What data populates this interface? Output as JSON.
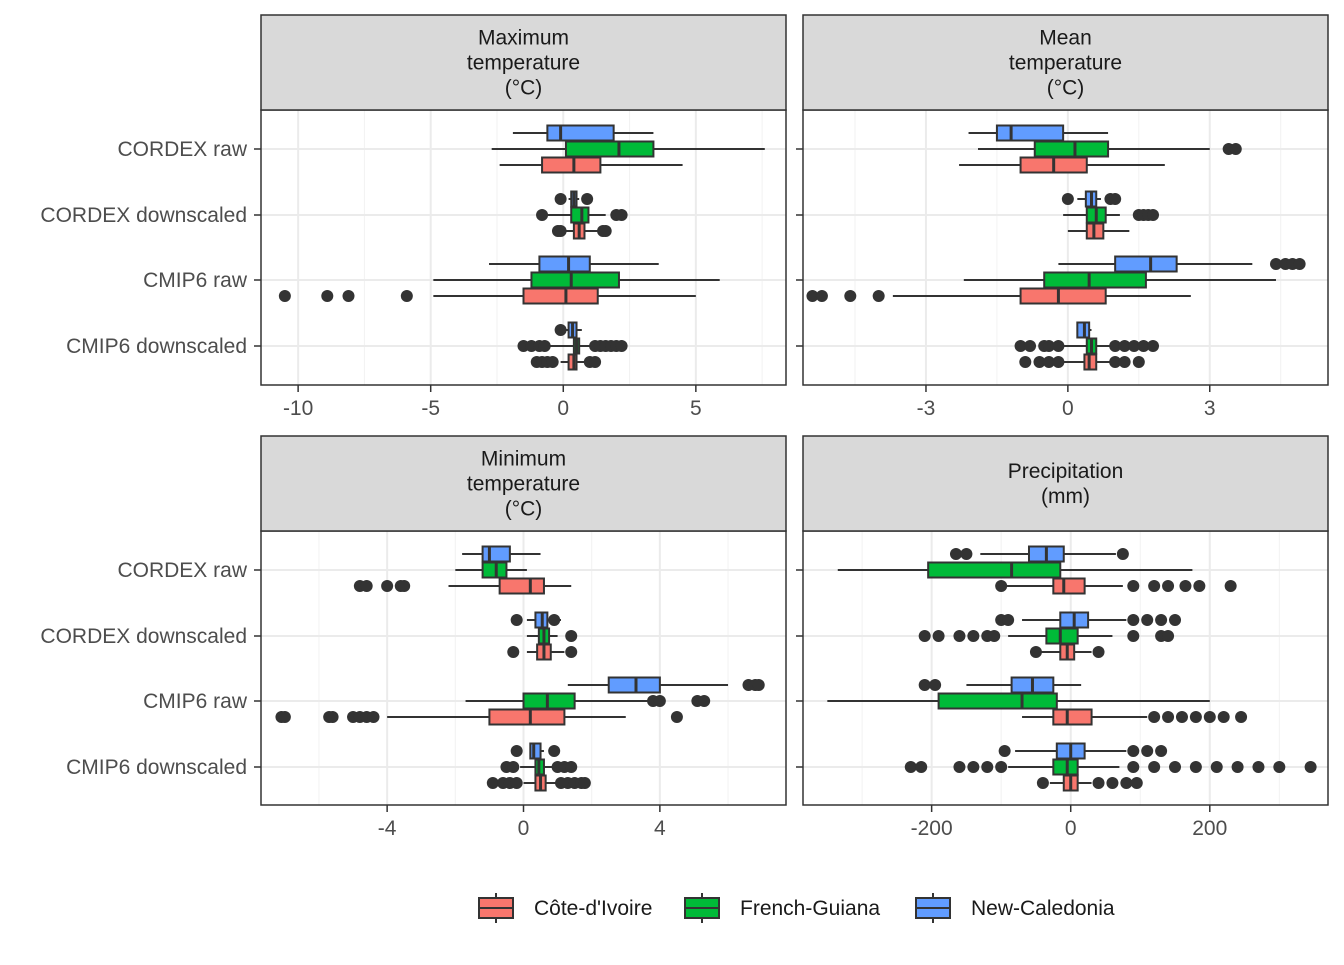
{
  "chart_data": {
    "type": "boxplot",
    "layout": "2x2 facet grid, horizontal boxplots, free x scales",
    "categories": [
      "CORDEX raw",
      "CORDEX downscaled",
      "CMIP6 raw",
      "CMIP6 downscaled"
    ],
    "legend": {
      "position": "bottom",
      "entries": [
        {
          "name": "Côte-d'Ivoire",
          "color": "#F8766D"
        },
        {
          "name": "French-Guiana",
          "color": "#00BA38"
        },
        {
          "name": "New-Caledonia",
          "color": "#619CFF"
        }
      ]
    },
    "panels": [
      {
        "title_lines": [
          "Maximum",
          "temperature",
          "(°C)"
        ],
        "xlim": [
          -11.4,
          8.4
        ],
        "xticks": [
          -10,
          -5,
          0,
          5
        ],
        "xtick_labels": [
          "-10",
          "-5",
          "0",
          "5"
        ],
        "groups": [
          {
            "category": "CORDEX raw",
            "series": {
              "New-Caledonia": {
                "whisker_low": -1.9,
                "q1": -0.6,
                "median": -0.1,
                "q3": 1.9,
                "whisker_high": 3.4,
                "outliers": []
              },
              "French-Guiana": {
                "whisker_low": -2.7,
                "q1": 0.1,
                "median": 2.1,
                "q3": 3.4,
                "whisker_high": 7.6,
                "outliers": []
              },
              "Côte-d'Ivoire": {
                "whisker_low": -2.4,
                "q1": -0.8,
                "median": 0.4,
                "q3": 1.4,
                "whisker_high": 4.5,
                "outliers": []
              }
            }
          },
          {
            "category": "CORDEX downscaled",
            "series": {
              "New-Caledonia": {
                "whisker_low": 0.2,
                "q1": 0.3,
                "median": 0.4,
                "q3": 0.5,
                "whisker_high": 0.6,
                "outliers": [
                  -0.1,
                  0.9
                ]
              },
              "French-Guiana": {
                "whisker_low": -0.6,
                "q1": 0.3,
                "median": 0.7,
                "q3": 0.95,
                "whisker_high": 1.6,
                "outliers": [
                  -0.8,
                  2.0,
                  2.2
                ]
              },
              "Côte-d'Ivoire": {
                "whisker_low": 0.1,
                "q1": 0.4,
                "median": 0.6,
                "q3": 0.8,
                "whisker_high": 1.3,
                "outliers": [
                  -0.2,
                  -0.1,
                  1.5,
                  1.6
                ]
              }
            }
          },
          {
            "category": "CMIP6 raw",
            "series": {
              "New-Caledonia": {
                "whisker_low": -2.8,
                "q1": -0.9,
                "median": 0.2,
                "q3": 1.0,
                "whisker_high": 3.6,
                "outliers": []
              },
              "French-Guiana": {
                "whisker_low": -4.9,
                "q1": -1.2,
                "median": 0.3,
                "q3": 2.1,
                "whisker_high": 5.9,
                "outliers": []
              },
              "Côte-d'Ivoire": {
                "whisker_low": -4.9,
                "q1": -1.5,
                "median": 0.1,
                "q3": 1.3,
                "whisker_high": 5.0,
                "outliers": [
                  -10.5,
                  -8.9,
                  -8.1,
                  -5.9
                ]
              }
            }
          },
          {
            "category": "CMIP6 downscaled",
            "series": {
              "New-Caledonia": {
                "whisker_low": 0.1,
                "q1": 0.2,
                "median": 0.35,
                "q3": 0.5,
                "whisker_high": 0.7,
                "outliers": [
                  -0.1
                ]
              },
              "French-Guiana": {
                "whisker_low": -0.6,
                "q1": 0.4,
                "median": 0.5,
                "q3": 0.6,
                "whisker_high": 1.1,
                "outliers": [
                  -1.5,
                  -1.2,
                  -0.9,
                  -0.7,
                  1.2,
                  1.4,
                  1.6,
                  1.8,
                  2.0,
                  2.2
                ]
              },
              "Côte-d'Ivoire": {
                "whisker_low": -0.1,
                "q1": 0.2,
                "median": 0.4,
                "q3": 0.5,
                "whisker_high": 0.9,
                "outliers": [
                  -1.0,
                  -0.8,
                  -0.6,
                  -0.4,
                  1.0,
                  1.2
                ]
              }
            }
          }
        ]
      },
      {
        "title_lines": [
          "Mean",
          "temperature",
          "(°C)"
        ],
        "xlim": [
          -5.6,
          5.5
        ],
        "xticks": [
          -3,
          0,
          3
        ],
        "xtick_labels": [
          "-3",
          "0",
          "3"
        ],
        "groups": [
          {
            "category": "CORDEX raw",
            "series": {
              "New-Caledonia": {
                "whisker_low": -2.1,
                "q1": -1.5,
                "median": -1.2,
                "q3": -0.1,
                "whisker_high": 0.85,
                "outliers": []
              },
              "French-Guiana": {
                "whisker_low": -1.9,
                "q1": -0.7,
                "median": 0.15,
                "q3": 0.85,
                "whisker_high": 3.0,
                "outliers": [
                  3.4,
                  3.55
                ]
              },
              "Côte-d'Ivoire": {
                "whisker_low": -2.3,
                "q1": -1.0,
                "median": -0.3,
                "q3": 0.4,
                "whisker_high": 2.05,
                "outliers": []
              }
            }
          },
          {
            "category": "CORDEX downscaled",
            "series": {
              "New-Caledonia": {
                "whisker_low": 0.2,
                "q1": 0.38,
                "median": 0.5,
                "q3": 0.6,
                "whisker_high": 0.7,
                "outliers": [
                  0.0,
                  0.9,
                  1.0
                ]
              },
              "French-Guiana": {
                "whisker_low": -0.1,
                "q1": 0.4,
                "median": 0.6,
                "q3": 0.8,
                "whisker_high": 1.1,
                "outliers": [
                  1.5,
                  1.6,
                  1.7,
                  1.8
                ]
              },
              "Côte-d'Ivoire": {
                "whisker_low": 0.0,
                "q1": 0.4,
                "median": 0.55,
                "q3": 0.75,
                "whisker_high": 1.3,
                "outliers": []
              }
            }
          },
          {
            "category": "CMIP6 raw",
            "series": {
              "New-Caledonia": {
                "whisker_low": -0.2,
                "q1": 1.0,
                "median": 1.75,
                "q3": 2.3,
                "whisker_high": 3.9,
                "outliers": [
                  4.4,
                  4.6,
                  4.75,
                  4.9
                ]
              },
              "French-Guiana": {
                "whisker_low": -2.2,
                "q1": -0.5,
                "median": 0.45,
                "q3": 1.65,
                "whisker_high": 4.4,
                "outliers": []
              },
              "Côte-d'Ivoire": {
                "whisker_low": -3.7,
                "q1": -1.0,
                "median": -0.2,
                "q3": 0.8,
                "whisker_high": 2.6,
                "outliers": [
                  -5.4,
                  -5.2,
                  -4.6,
                  -4.0
                ]
              }
            }
          },
          {
            "category": "CMIP6 downscaled",
            "series": {
              "New-Caledonia": {
                "whisker_low": 0.2,
                "q1": 0.2,
                "median": 0.35,
                "q3": 0.45,
                "whisker_high": 0.5,
                "outliers": []
              },
              "French-Guiana": {
                "whisker_low": -0.3,
                "q1": 0.4,
                "median": 0.5,
                "q3": 0.6,
                "whisker_high": 0.9,
                "outliers": [
                  -1.0,
                  -0.8,
                  -0.5,
                  -0.4,
                  -0.2,
                  1.0,
                  1.2,
                  1.4,
                  1.6,
                  1.8
                ]
              },
              "Côte-d'Ivoire": {
                "whisker_low": -0.3,
                "q1": 0.35,
                "median": 0.45,
                "q3": 0.6,
                "whisker_high": 0.9,
                "outliers": [
                  -0.9,
                  -0.6,
                  -0.4,
                  -0.2,
                  1.0,
                  1.2,
                  1.5
                ]
              }
            }
          }
        ]
      },
      {
        "title_lines": [
          "Minimum",
          "temperature",
          "(°C)"
        ],
        "xlim": [
          -7.7,
          7.7
        ],
        "xticks": [
          -4,
          0,
          4
        ],
        "xtick_labels": [
          "-4",
          "0",
          "4"
        ],
        "groups": [
          {
            "category": "CORDEX raw",
            "series": {
              "New-Caledonia": {
                "whisker_low": -1.8,
                "q1": -1.2,
                "median": -1.0,
                "q3": -0.4,
                "whisker_high": 0.5,
                "outliers": []
              },
              "French-Guiana": {
                "whisker_low": -2.0,
                "q1": -1.2,
                "median": -0.8,
                "q3": -0.5,
                "whisker_high": 0.1,
                "outliers": []
              },
              "Côte-d'Ivoire": {
                "whisker_low": -2.2,
                "q1": -0.7,
                "median": 0.2,
                "q3": 0.6,
                "whisker_high": 1.4,
                "outliers": [
                  -4.8,
                  -4.6,
                  -4.0,
                  -3.6,
                  -3.5
                ]
              }
            }
          },
          {
            "category": "CORDEX downscaled",
            "series": {
              "New-Caledonia": {
                "whisker_low": 0.1,
                "q1": 0.35,
                "median": 0.55,
                "q3": 0.7,
                "whisker_high": 1.1,
                "outliers": [
                  -0.2,
                  0.9
                ]
              },
              "French-Guiana": {
                "whisker_low": 0.1,
                "q1": 0.45,
                "median": 0.6,
                "q3": 0.75,
                "whisker_high": 1.0,
                "outliers": [
                  1.4
                ]
              },
              "Côte-d'Ivoire": {
                "whisker_low": 0.1,
                "q1": 0.4,
                "median": 0.6,
                "q3": 0.8,
                "whisker_high": 1.2,
                "outliers": [
                  -0.3,
                  1.4
                ]
              }
            }
          },
          {
            "category": "CMIP6 raw",
            "series": {
              "New-Caledonia": {
                "whisker_low": 1.3,
                "q1": 2.5,
                "median": 3.3,
                "q3": 4.0,
                "whisker_high": 6.0,
                "outliers": [
                  6.6,
                  6.8,
                  6.9
                ]
              },
              "French-Guiana": {
                "whisker_low": -1.7,
                "q1": 0.0,
                "median": 0.7,
                "q3": 1.5,
                "whisker_high": 3.7,
                "outliers": [
                  3.8,
                  4.0,
                  5.1,
                  5.3
                ]
              },
              "Côte-d'Ivoire": {
                "whisker_low": -4.0,
                "q1": -1.0,
                "median": 0.2,
                "q3": 1.2,
                "whisker_high": 3.0,
                "outliers": [
                  -7.1,
                  -7.0,
                  -5.7,
                  -5.6,
                  -5.0,
                  -4.8,
                  -4.6,
                  -4.4,
                  4.5
                ]
              }
            }
          },
          {
            "category": "CMIP6 downscaled",
            "series": {
              "New-Caledonia": {
                "whisker_low": 0.2,
                "q1": 0.2,
                "median": 0.3,
                "q3": 0.5,
                "whisker_high": 0.6,
                "outliers": [
                  -0.2,
                  0.9
                ]
              },
              "French-Guiana": {
                "whisker_low": -0.1,
                "q1": 0.35,
                "median": 0.45,
                "q3": 0.6,
                "whisker_high": 0.9,
                "outliers": [
                  -0.5,
                  -0.3,
                  1.0,
                  1.2,
                  1.4
                ]
              },
              "Côte-d'Ivoire": {
                "whisker_low": 0.0,
                "q1": 0.35,
                "median": 0.5,
                "q3": 0.65,
                "whisker_high": 1.0,
                "outliers": [
                  -0.9,
                  -0.6,
                  -0.4,
                  -0.2,
                  1.1,
                  1.3,
                  1.5,
                  1.7,
                  1.8
                ]
              }
            }
          }
        ]
      },
      {
        "title_lines": [
          "Precipitation",
          "(mm)"
        ],
        "xlim": [
          -385,
          370
        ],
        "xticks": [
          -200,
          0,
          200
        ],
        "xtick_labels": [
          "-200",
          "0",
          "200"
        ],
        "groups": [
          {
            "category": "CORDEX raw",
            "series": {
              "New-Caledonia": {
                "whisker_low": -130,
                "q1": -60,
                "median": -35,
                "q3": -10,
                "whisker_high": 65,
                "outliers": [
                  -165,
                  -150,
                  75
                ]
              },
              "French-Guiana": {
                "whisker_low": -335,
                "q1": -205,
                "median": -85,
                "q3": -15,
                "whisker_high": 175,
                "outliers": []
              },
              "Côte-d'Ivoire": {
                "whisker_low": -95,
                "q1": -25,
                "median": -10,
                "q3": 20,
                "whisker_high": 75,
                "outliers": [
                  -100,
                  90,
                  120,
                  140,
                  165,
                  185,
                  230
                ]
              }
            }
          },
          {
            "category": "CORDEX downscaled",
            "series": {
              "New-Caledonia": {
                "whisker_low": -70,
                "q1": -15,
                "median": 5,
                "q3": 25,
                "whisker_high": 80,
                "outliers": [
                  -100,
                  -90,
                  90,
                  110,
                  130,
                  150
                ]
              },
              "French-Guiana": {
                "whisker_low": -90,
                "q1": -35,
                "median": -15,
                "q3": 10,
                "whisker_high": 60,
                "outliers": [
                  -210,
                  -190,
                  -160,
                  -140,
                  -120,
                  -110,
                  90,
                  130,
                  140
                ]
              },
              "Côte-d'Ivoire": {
                "whisker_low": -45,
                "q1": -15,
                "median": -5,
                "q3": 5,
                "whisker_high": 30,
                "outliers": [
                  -50,
                  40
                ]
              }
            }
          },
          {
            "category": "CMIP6 raw",
            "series": {
              "New-Caledonia": {
                "whisker_low": -150,
                "q1": -85,
                "median": -55,
                "q3": -25,
                "whisker_high": 15,
                "outliers": [
                  -210,
                  -195
                ]
              },
              "French-Guiana": {
                "whisker_low": -350,
                "q1": -190,
                "median": -70,
                "q3": -20,
                "whisker_high": 200,
                "outliers": []
              },
              "Côte-d'Ivoire": {
                "whisker_low": -70,
                "q1": -25,
                "median": -5,
                "q3": 30,
                "whisker_high": 110,
                "outliers": [
                  120,
                  140,
                  160,
                  180,
                  200,
                  220,
                  245
                ]
              }
            }
          },
          {
            "category": "CMIP6 downscaled",
            "series": {
              "New-Caledonia": {
                "whisker_low": -80,
                "q1": -20,
                "median": 0,
                "q3": 20,
                "whisker_high": 80,
                "outliers": [
                  -95,
                  90,
                  110,
                  130
                ]
              },
              "French-Guiana": {
                "whisker_low": -90,
                "q1": -25,
                "median": -5,
                "q3": 10,
                "whisker_high": 70,
                "outliers": [
                  -230,
                  -215,
                  -160,
                  -140,
                  -120,
                  -100,
                  90,
                  120,
                  150,
                  180,
                  210,
                  240,
                  270,
                  300,
                  345
                ]
              },
              "Côte-d'Ivoire": {
                "whisker_low": -30,
                "q1": -10,
                "median": 0,
                "q3": 10,
                "whisker_high": 30,
                "outliers": [
                  -40,
                  40,
                  60,
                  80,
                  95
                ]
              }
            }
          }
        ]
      }
    ]
  }
}
